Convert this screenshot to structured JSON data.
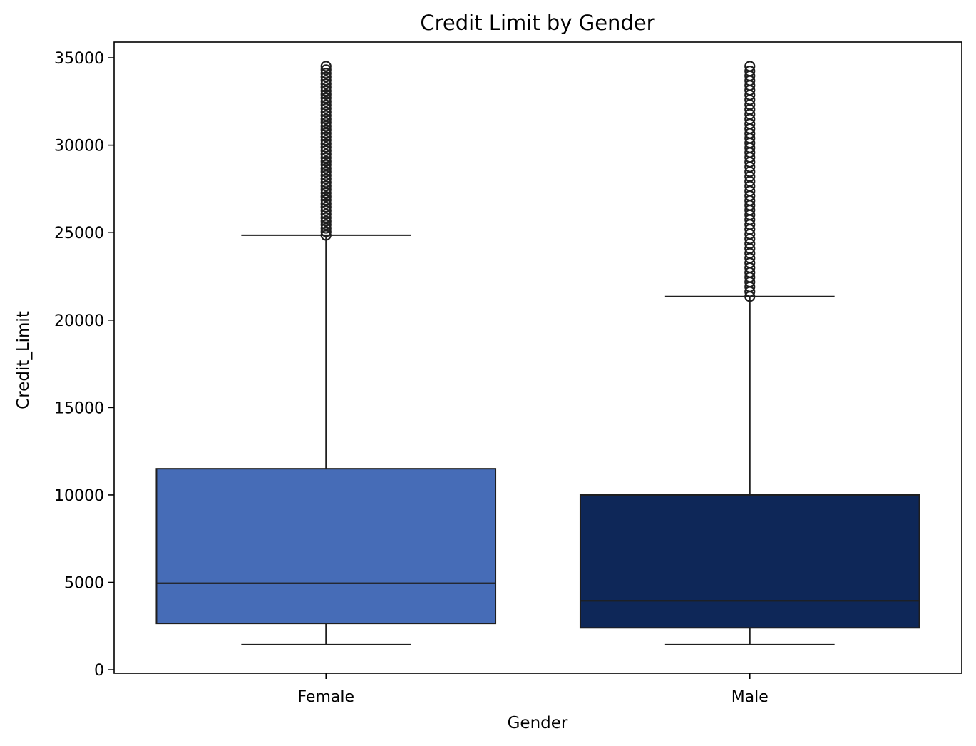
{
  "chart_data": {
    "type": "box",
    "title": "Credit Limit by Gender",
    "xlabel": "Gender",
    "ylabel": "Credit_Limit",
    "ylim": [
      -200,
      35900
    ],
    "yticks": [
      0,
      5000,
      10000,
      15000,
      20000,
      25000,
      30000,
      35000
    ],
    "yticks_labels": [
      "0",
      "5000",
      "10000",
      "15000",
      "20000",
      "25000",
      "30000",
      "35000"
    ],
    "grid": false,
    "categories": [
      "Female",
      "Male"
    ],
    "boxes": [
      {
        "category": "Female",
        "color": "#466cb7",
        "whisker_low": 1438,
        "q1": 2650,
        "median": 4950,
        "q3": 11500,
        "whisker_high": 24850,
        "outlier_range": [
          24850,
          34516
        ]
      },
      {
        "category": "Male",
        "color": "#0e2758",
        "whisker_low": 1438,
        "q1": 2400,
        "median": 3950,
        "q3": 10000,
        "whisker_high": 21350,
        "outlier_range": [
          21350,
          34516
        ]
      }
    ]
  }
}
